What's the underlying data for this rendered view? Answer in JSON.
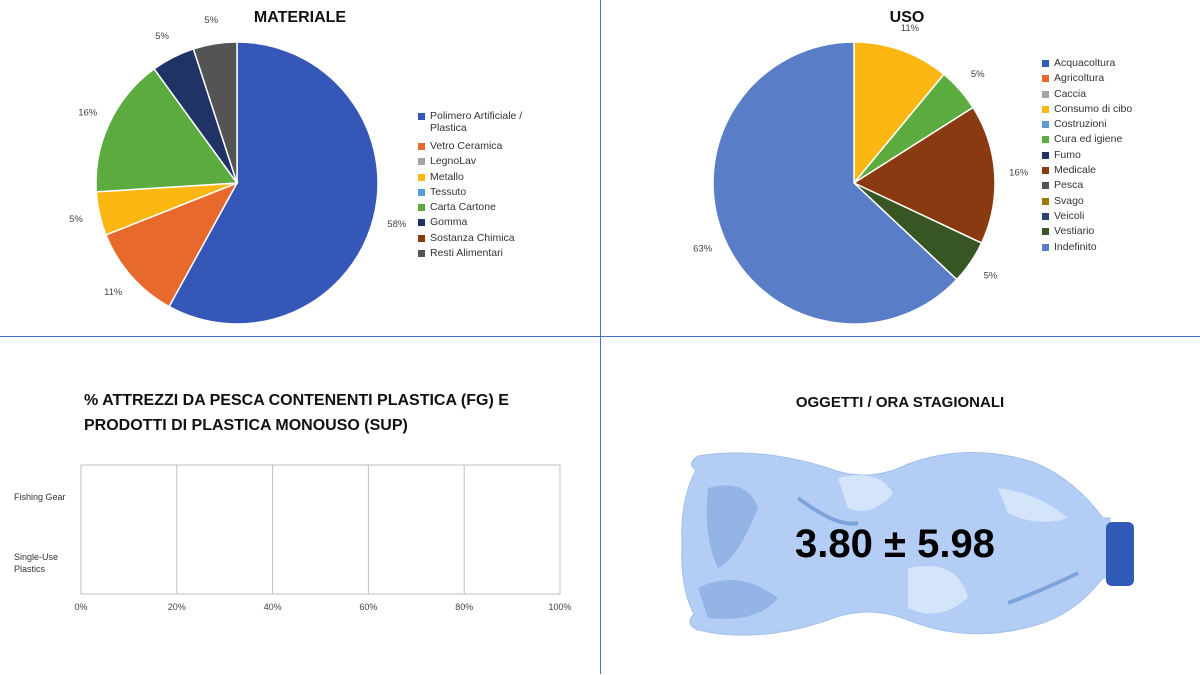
{
  "chart_data": [
    {
      "type": "pie",
      "title": "MATERIALE",
      "categories": [
        "Polimero Artificiale / Plastica",
        "Vetro Ceramica",
        "LegnoLav",
        "Metallo",
        "Tessuto",
        "Carta Cartone",
        "Gomma",
        "Sostanza Chimica",
        "Resti Alimentari"
      ],
      "values": [
        58,
        11,
        0,
        5,
        0,
        16,
        5,
        0,
        5
      ],
      "data_labels": [
        "58%",
        "11%",
        "",
        "5%",
        "",
        "16%",
        "5%",
        "",
        "5%"
      ],
      "colors": [
        "#3558b8",
        "#e8692c",
        "#a5a5a5",
        "#fcb712",
        "#5b9bd5",
        "#5bab3f",
        "#1f3464",
        "#8a3a11",
        "#545454"
      ],
      "legend": "right"
    },
    {
      "type": "pie",
      "title": "USO",
      "categories": [
        "Acquacoltura",
        "Agricoltura",
        "Caccia",
        "Consumo di cibo",
        "Costruzioni",
        "Cura ed igiene",
        "Fumo",
        "Medicale",
        "Pesca",
        "Svago",
        "Veicoli",
        "Vestiario",
        "Indefinito"
      ],
      "values": [
        0,
        0,
        0,
        11,
        0,
        5,
        0,
        16,
        0,
        0,
        0,
        5,
        63
      ],
      "data_labels": [
        "",
        "",
        "",
        "11%",
        "",
        "5%",
        "",
        "16%",
        "",
        "",
        "",
        "5%",
        "63%"
      ],
      "colors": [
        "#2e5fb5",
        "#e8692c",
        "#a5a5a5",
        "#fcb712",
        "#5b9bd5",
        "#5bab3f",
        "#1f3464",
        "#8a3a11",
        "#545454",
        "#9a7a00",
        "#264478",
        "#375623",
        "#5a7dc8"
      ],
      "legend": "right"
    },
    {
      "type": "bar",
      "orientation": "horizontal",
      "stacked": true,
      "title": "% ATTREZZI DA PESCA CONTENENTI PLASTICA (FG) E PRODOTTI DI PLASTICA MONOUSO (SUP)",
      "categories": [
        "Fishing Gear",
        "Single-Use Plastics"
      ],
      "series": [],
      "xlim": [
        0,
        100
      ],
      "x_ticks": [
        "0%",
        "20%",
        "40%",
        "60%",
        "80%",
        "100%"
      ],
      "grid": true
    }
  ],
  "seasonal": {
    "title": "OGGETTI / ORA STAGIONALI",
    "value": "3.80 ± 5.98"
  }
}
